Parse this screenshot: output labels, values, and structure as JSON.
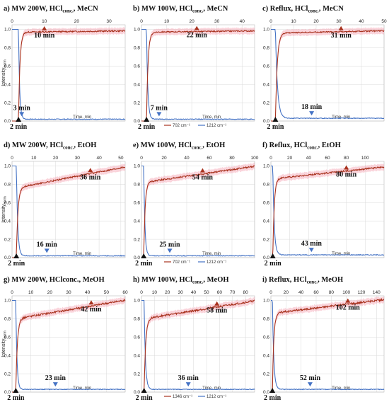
{
  "chart_data": [
    {
      "id": "a",
      "type": "line",
      "title_main": "a) MW 200W, HCl",
      "title_sub": "conc.",
      "title_tail": ", MeCN",
      "xticks": [
        0,
        10,
        20,
        30
      ],
      "xlim": [
        0,
        35
      ],
      "yticks": [
        0.0,
        0.2,
        0.4,
        0.6,
        0.8,
        1.0
      ],
      "ylim": [
        0,
        1.05
      ],
      "xlabel": "Time, min",
      "ylabel": "Intensity",
      "ylabel_sub": "norm",
      "legend": {
        "s1": "702 cm⁻¹",
        "s2": "1212 cm⁻¹",
        "show": false
      },
      "rise": {
        "t0": 2,
        "tau": 0.45,
        "end": 0.97,
        "slope": 0.0004,
        "noise": 0.007
      },
      "decay": {
        "t0": 2,
        "tau": 0.35,
        "base": 0.02,
        "noise": 0.004
      },
      "ann_start": "2 min",
      "ann_rise": {
        "text": "10 min",
        "x": 10
      },
      "ann_decay": {
        "text": "3 min",
        "x": 3
      }
    },
    {
      "id": "b",
      "type": "line",
      "title_main": "b) MW 100W, HCl",
      "title_sub": "conc.",
      "title_tail": ", MeCN",
      "xticks": [
        0,
        10,
        20,
        30,
        40
      ],
      "xlim": [
        0,
        45
      ],
      "yticks": [
        0.0,
        0.2,
        0.4,
        0.6,
        0.8,
        1.0
      ],
      "ylim": [
        0,
        1.05
      ],
      "xlabel": "Time, min",
      "ylabel": "",
      "ylabel_sub": "",
      "legend": {
        "s1": "702 cm⁻¹",
        "s2": "1212 cm⁻¹",
        "show": true
      },
      "rise": {
        "t0": 2,
        "tau": 0.6,
        "end": 0.97,
        "slope": 0.0003,
        "noise": 0.006
      },
      "decay": {
        "t0": 2,
        "tau": 0.5,
        "base": 0.02,
        "noise": 0.004
      },
      "ann_start": "2 min",
      "ann_rise": {
        "text": "22 min",
        "x": 22
      },
      "ann_decay": {
        "text": "7 min",
        "x": 7
      }
    },
    {
      "id": "c",
      "type": "line",
      "title_main": "c) Reflux, HCl",
      "title_sub": "conc.",
      "title_tail": ", MeCN",
      "xticks": [
        0,
        10,
        20,
        30,
        40,
        50
      ],
      "xlim": [
        0,
        50
      ],
      "yticks": [
        0.0,
        0.2,
        0.4,
        0.6,
        0.8,
        1.0
      ],
      "ylim": [
        0,
        1.05
      ],
      "xlabel": "Time, min",
      "ylabel": "",
      "ylabel_sub": "",
      "legend": {
        "s1": "702 cm⁻¹",
        "s2": "1212 cm⁻¹",
        "show": false
      },
      "rise": {
        "t0": 2,
        "tau": 0.8,
        "end": 0.96,
        "slope": 0.0005,
        "noise": 0.006
      },
      "decay": {
        "t0": 2,
        "tau": 0.9,
        "base": 0.03,
        "noise": 0.004
      },
      "ann_start": "2 min",
      "ann_rise": {
        "text": "31 min",
        "x": 31
      },
      "ann_decay": {
        "text": "18 min",
        "x": 18
      }
    },
    {
      "id": "d",
      "type": "line",
      "title_main": "d) MW 200W, HCl",
      "title_sub": "conc.",
      "title_tail": ", EtOH",
      "xticks": [
        0,
        10,
        20,
        30,
        40,
        50
      ],
      "xlim": [
        0,
        52
      ],
      "yticks": [
        0.0,
        0.2,
        0.4,
        0.6,
        0.8,
        1.0
      ],
      "ylim": [
        0,
        1.05
      ],
      "xlabel": "Time, min",
      "ylabel": "Intensity",
      "ylabel_sub": "norm",
      "legend": {
        "s1": "702 cm⁻¹",
        "s2": "1212 cm⁻¹",
        "show": false
      },
      "rise": {
        "t0": 2,
        "tau": 0.7,
        "end": 0.76,
        "slope": 0.0046,
        "noise": 0.008
      },
      "decay": {
        "t0": 2,
        "tau": 0.6,
        "base": 0.02,
        "noise": 0.004
      },
      "ann_start": "2 min",
      "ann_rise": {
        "text": "36 min",
        "x": 36
      },
      "ann_decay": {
        "text": "16 min",
        "x": 16
      }
    },
    {
      "id": "e",
      "type": "line",
      "title_main": "e) MW 100W, HCl",
      "title_sub": "conc.",
      "title_tail": ", EtOH",
      "xticks": [
        0,
        20,
        40,
        60,
        80,
        100
      ],
      "xlim": [
        0,
        100
      ],
      "yticks": [
        0.0,
        0.2,
        0.4,
        0.6,
        0.8,
        1.0
      ],
      "ylim": [
        0,
        1.05
      ],
      "xlabel": "Time, min",
      "ylabel": "",
      "ylabel_sub": "",
      "legend": {
        "s1": "702 cm⁻¹",
        "s2": "1212 cm⁻¹",
        "show": true
      },
      "rise": {
        "t0": 2,
        "tau": 1.2,
        "end": 0.82,
        "slope": 0.0018,
        "noise": 0.008
      },
      "decay": {
        "t0": 2,
        "tau": 1.0,
        "base": 0.02,
        "noise": 0.004
      },
      "ann_start": "2 min",
      "ann_rise": {
        "text": "54 min",
        "x": 54
      },
      "ann_decay": {
        "text": "25 min",
        "x": 25
      }
    },
    {
      "id": "f",
      "type": "line",
      "title_main": "f) Reflux, HCl",
      "title_sub": "conc.",
      "title_tail": ", EtOH",
      "xticks": [
        0,
        20,
        40,
        60,
        80,
        100
      ],
      "xlim": [
        0,
        120
      ],
      "yticks": [
        0.0,
        0.2,
        0.4,
        0.6,
        0.8,
        1.0
      ],
      "ylim": [
        0,
        1.05
      ],
      "xlabel": "Time, min",
      "ylabel": "",
      "ylabel_sub": "",
      "legend": {
        "s1": "702 cm⁻¹",
        "s2": "1212 cm⁻¹",
        "show": false
      },
      "rise": {
        "t0": 2,
        "tau": 1.5,
        "end": 0.86,
        "slope": 0.0011,
        "noise": 0.008
      },
      "decay": {
        "t0": 2,
        "tau": 1.5,
        "base": 0.03,
        "noise": 0.004
      },
      "ann_start": "2 min",
      "ann_rise": {
        "text": "80 min",
        "x": 80
      },
      "ann_decay": {
        "text": "43 min",
        "x": 43
      }
    },
    {
      "id": "g",
      "type": "line",
      "title_main": "g) MW 200W, HClconc., MeOH",
      "title_sub": "",
      "title_tail": "",
      "xticks": [
        0,
        10,
        20,
        30,
        40,
        50,
        60
      ],
      "xlim": [
        0,
        60
      ],
      "yticks": [
        0.0,
        0.2,
        0.4,
        0.6,
        0.8,
        1.0
      ],
      "ylim": [
        0,
        1.05
      ],
      "xlabel": "Time, min",
      "ylabel": "Intensity",
      "ylabel_sub": "norm",
      "legend": {
        "s1": "1346 cm⁻¹",
        "s2": "1212 cm⁻¹",
        "show": false
      },
      "rise": {
        "t0": 2,
        "tau": 0.8,
        "end": 0.8,
        "slope": 0.0035,
        "noise": 0.01
      },
      "decay": {
        "t0": 2,
        "tau": 0.6,
        "base": 0.03,
        "noise": 0.004
      },
      "ann_start": "2 min",
      "ann_rise": {
        "text": "42 min",
        "x": 42
      },
      "ann_decay": {
        "text": "23 min",
        "x": 23
      }
    },
    {
      "id": "h",
      "type": "line",
      "title_main": "h) MW 100W, HCl",
      "title_sub": "conc.",
      "title_tail": ", MeOH",
      "xticks": [
        0,
        10,
        20,
        30,
        40,
        50,
        60,
        70,
        80
      ],
      "xlim": [
        0,
        87
      ],
      "yticks": [
        0.0,
        0.2,
        0.4,
        0.6,
        0.8,
        1.0
      ],
      "ylim": [
        0,
        1.05
      ],
      "xlabel": "Time, min",
      "ylabel": "",
      "ylabel_sub": "",
      "legend": {
        "s1": "1346 cm⁻¹",
        "s2": "1212 cm⁻¹",
        "show": true
      },
      "rise": {
        "t0": 2,
        "tau": 1.2,
        "end": 0.8,
        "slope": 0.0023,
        "noise": 0.01
      },
      "decay": {
        "t0": 2,
        "tau": 1.0,
        "base": 0.03,
        "noise": 0.004
      },
      "ann_start": "2 min",
      "ann_rise": {
        "text": "58 min",
        "x": 58
      },
      "ann_decay": {
        "text": "36 min",
        "x": 36
      }
    },
    {
      "id": "i",
      "type": "line",
      "title_main": "i) Reflux, HCl",
      "title_sub": "conc.",
      "title_tail": ", MeOH",
      "xticks": [
        0,
        20,
        40,
        60,
        80,
        100,
        120,
        140
      ],
      "xlim": [
        0,
        150
      ],
      "yticks": [
        0.0,
        0.2,
        0.4,
        0.6,
        0.8,
        1.0
      ],
      "ylim": [
        0,
        1.05
      ],
      "xlabel": "Time, min",
      "ylabel": "",
      "ylabel_sub": "",
      "legend": {
        "s1": "1346 cm⁻¹",
        "s2": "1212 cm⁻¹",
        "show": false
      },
      "rise": {
        "t0": 2,
        "tau": 1.8,
        "end": 0.86,
        "slope": 0.001,
        "noise": 0.01
      },
      "decay": {
        "t0": 2,
        "tau": 1.8,
        "base": 0.03,
        "noise": 0.004
      },
      "ann_start": "2 min",
      "ann_rise": {
        "text": "102 min",
        "x": 102
      },
      "ann_decay": {
        "text": "52 min",
        "x": 52
      }
    }
  ],
  "colors": {
    "rise": "#a8321e",
    "decay": "#4472c4",
    "rise_band": "#f4a0b0",
    "grid": "#d9d9d9",
    "marker_start": "#111111"
  }
}
